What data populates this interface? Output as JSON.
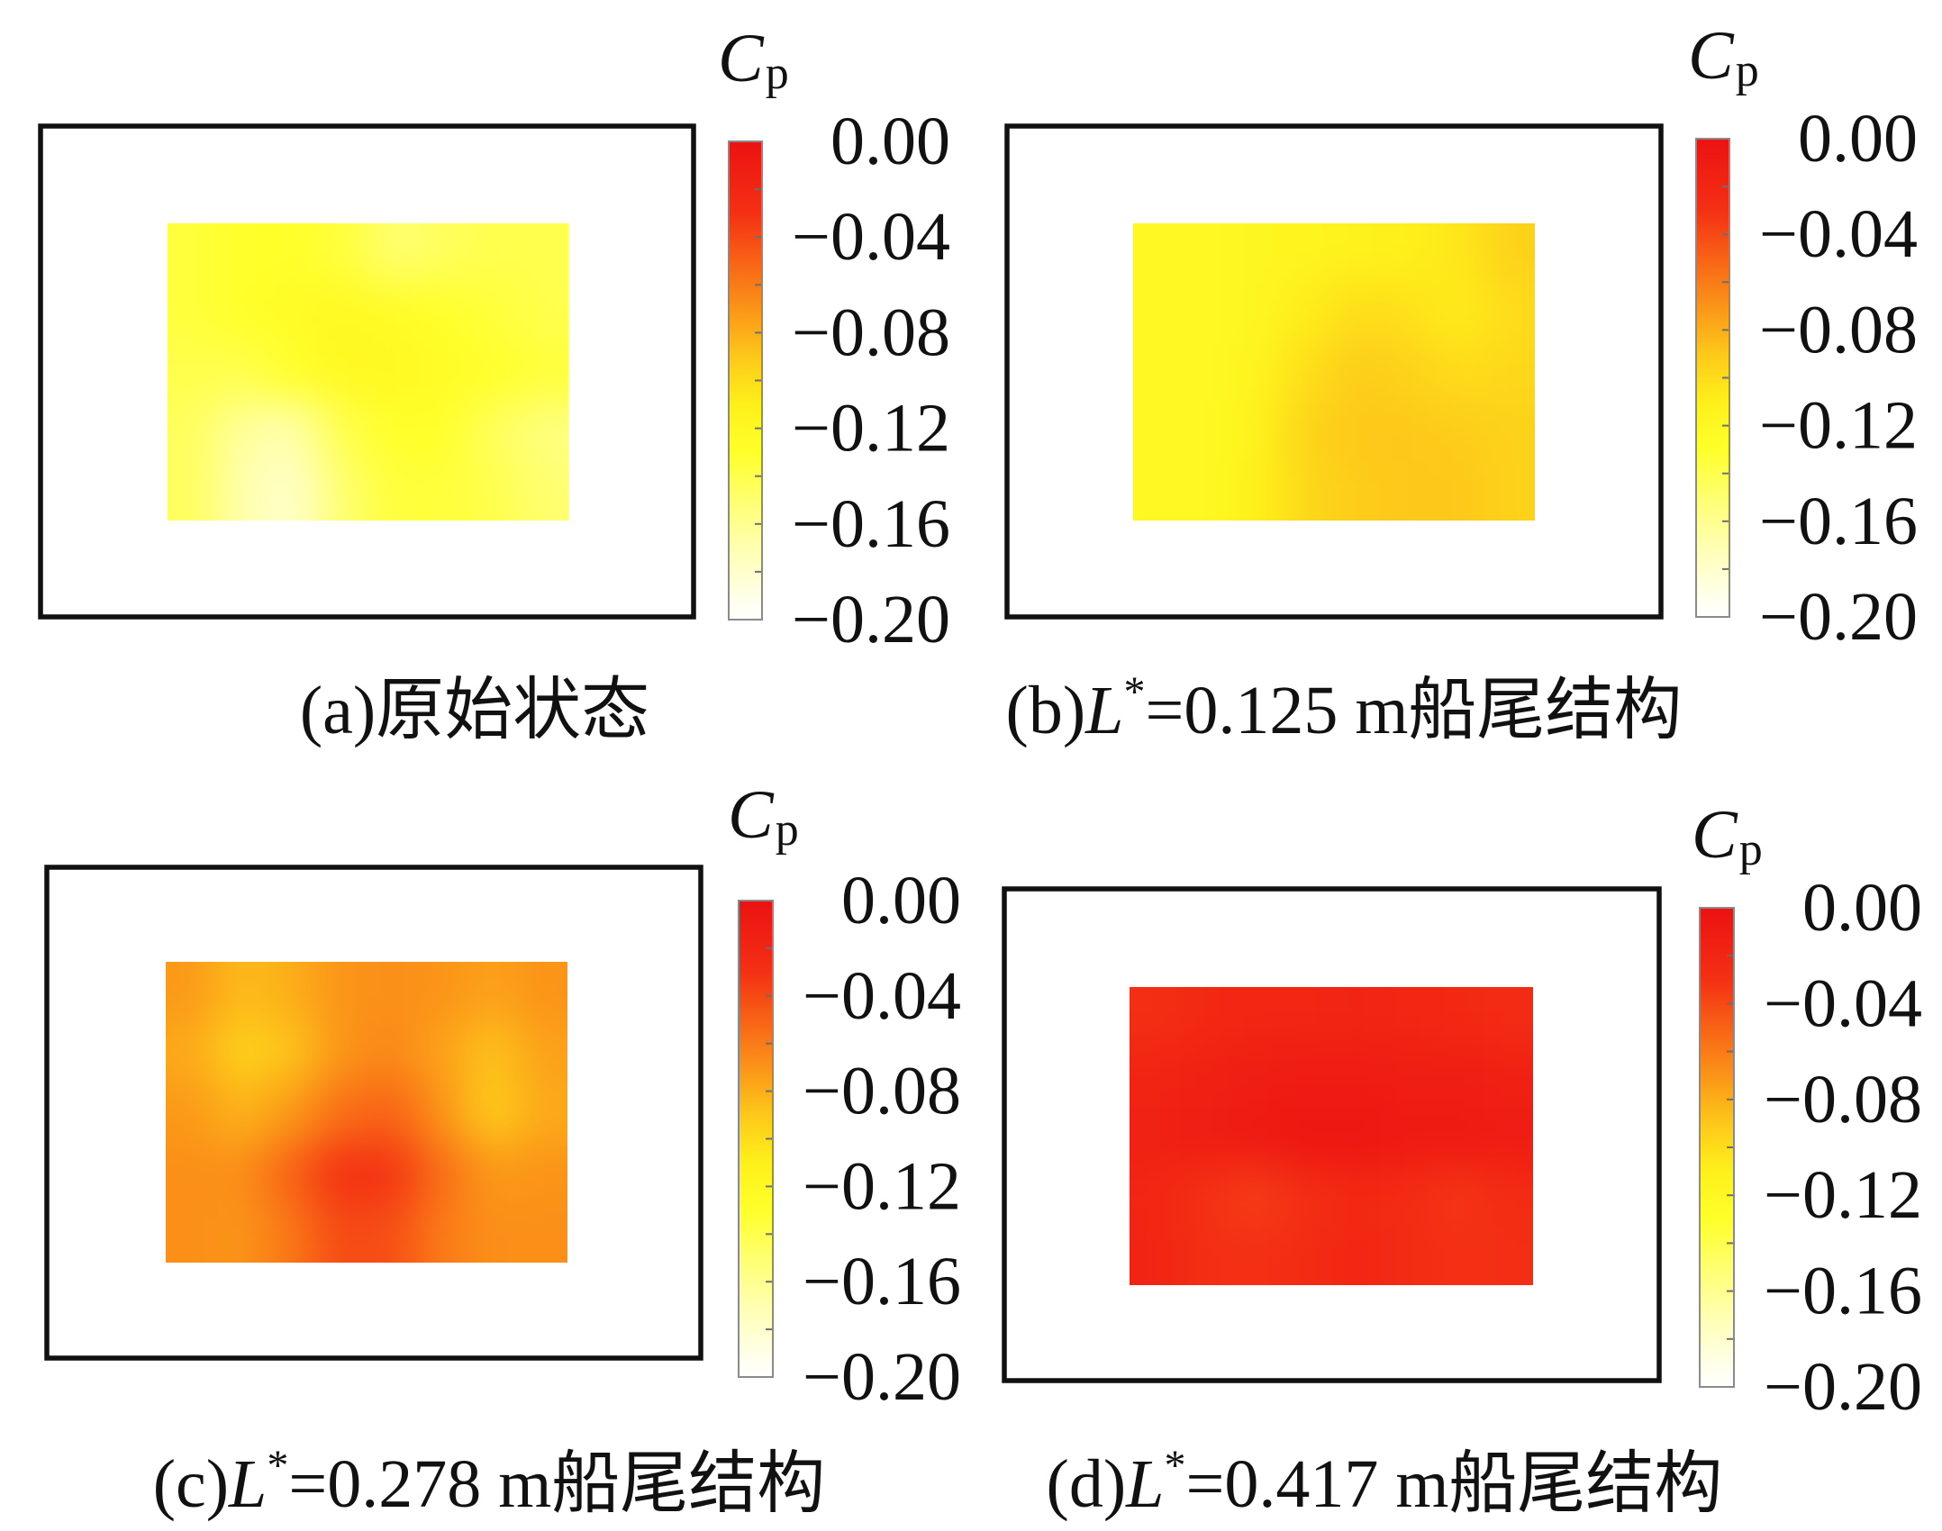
{
  "colormap": [
    {
      "value": 0.0,
      "color": "#ec1212"
    },
    {
      "value": -0.03,
      "color": "#f43014"
    },
    {
      "value": -0.05,
      "color": "#f86216"
    },
    {
      "value": -0.07,
      "color": "#fb9418"
    },
    {
      "value": -0.09,
      "color": "#fdc81a"
    },
    {
      "value": -0.11,
      "color": "#fef01a"
    },
    {
      "value": -0.13,
      "color": "#ffff2a"
    },
    {
      "value": -0.15,
      "color": "#ffff70"
    },
    {
      "value": -0.17,
      "color": "#ffffb0"
    },
    {
      "value": -0.19,
      "color": "#ffffe8"
    },
    {
      "value": -0.2,
      "color": "#ffffff"
    }
  ],
  "chart_data": [
    {
      "type": "heatmap",
      "caption": {
        "text": "(a)原始状态"
      },
      "colorbar": {
        "label": "C",
        "label_sub": "p",
        "range": [
          -0.2,
          0.0
        ],
        "tick_values": [
          0.0,
          -0.04,
          -0.08,
          -0.12,
          -0.16,
          -0.2
        ],
        "tick_labels": [
          "0.00",
          "−0.04",
          "−0.08",
          "−0.12",
          "−0.16",
          "−0.20"
        ],
        "minor_tick_interval": 0.02
      },
      "z": [
        [
          -0.135,
          -0.13,
          -0.13,
          -0.135,
          -0.15,
          -0.145,
          -0.14,
          -0.14
        ],
        [
          -0.135,
          -0.13,
          -0.125,
          -0.12,
          -0.125,
          -0.13,
          -0.135,
          -0.14
        ],
        [
          -0.14,
          -0.14,
          -0.13,
          -0.12,
          -0.12,
          -0.125,
          -0.13,
          -0.135
        ],
        [
          -0.145,
          -0.165,
          -0.17,
          -0.14,
          -0.13,
          -0.13,
          -0.145,
          -0.155
        ],
        [
          -0.145,
          -0.17,
          -0.18,
          -0.15,
          -0.135,
          -0.135,
          -0.14,
          -0.15
        ]
      ]
    },
    {
      "type": "heatmap",
      "caption": {
        "prefix": "(b)",
        "var": "L",
        "sup": "*",
        "rest": "=0.125 m船尾结构"
      },
      "colorbar": {
        "label": "C",
        "label_sub": "p",
        "range": [
          -0.2,
          0.0
        ],
        "tick_values": [
          0.0,
          -0.04,
          -0.08,
          -0.12,
          -0.16,
          -0.2
        ],
        "tick_labels": [
          "0.00",
          "−0.04",
          "−0.08",
          "−0.12",
          "−0.16",
          "−0.20"
        ],
        "minor_tick_interval": 0.02
      },
      "z": [
        [
          -0.12,
          -0.12,
          -0.118,
          -0.115,
          -0.112,
          -0.11,
          -0.105,
          -0.095
        ],
        [
          -0.12,
          -0.12,
          -0.118,
          -0.108,
          -0.1,
          -0.102,
          -0.108,
          -0.1
        ],
        [
          -0.12,
          -0.12,
          -0.115,
          -0.1,
          -0.092,
          -0.095,
          -0.1,
          -0.098
        ],
        [
          -0.12,
          -0.12,
          -0.112,
          -0.095,
          -0.09,
          -0.09,
          -0.092,
          -0.095
        ],
        [
          -0.12,
          -0.12,
          -0.11,
          -0.097,
          -0.092,
          -0.09,
          -0.09,
          -0.095
        ]
      ]
    },
    {
      "type": "heatmap",
      "caption": {
        "prefix": "(c)",
        "var": "L",
        "sup": "*",
        "rest": "=0.278 m船尾结构"
      },
      "colorbar": {
        "label": "C",
        "label_sub": "p",
        "range": [
          -0.2,
          0.0
        ],
        "tick_values": [
          0.0,
          -0.04,
          -0.08,
          -0.12,
          -0.16,
          -0.2
        ],
        "tick_labels": [
          "0.00",
          "−0.04",
          "−0.08",
          "−0.12",
          "−0.16",
          "−0.20"
        ],
        "minor_tick_interval": 0.02
      },
      "z": [
        [
          -0.072,
          -0.085,
          -0.08,
          -0.07,
          -0.068,
          -0.07,
          -0.075,
          -0.07
        ],
        [
          -0.078,
          -0.095,
          -0.088,
          -0.07,
          -0.065,
          -0.075,
          -0.088,
          -0.075
        ],
        [
          -0.072,
          -0.082,
          -0.072,
          -0.055,
          -0.05,
          -0.07,
          -0.092,
          -0.078
        ],
        [
          -0.068,
          -0.068,
          -0.05,
          -0.03,
          -0.032,
          -0.055,
          -0.072,
          -0.07
        ],
        [
          -0.068,
          -0.07,
          -0.058,
          -0.04,
          -0.042,
          -0.06,
          -0.068,
          -0.068
        ]
      ]
    },
    {
      "type": "heatmap",
      "caption": {
        "prefix": "(d)",
        "var": "L",
        "sup": "*",
        "rest": "=0.417 m船尾结构"
      },
      "colorbar": {
        "label": "C",
        "label_sub": "p",
        "range": [
          -0.2,
          0.0
        ],
        "tick_values": [
          0.0,
          -0.04,
          -0.08,
          -0.12,
          -0.16,
          -0.2
        ],
        "tick_labels": [
          "0.00",
          "−0.04",
          "−0.08",
          "−0.12",
          "−0.16",
          "−0.20"
        ],
        "minor_tick_interval": 0.02
      },
      "z": [
        [
          -0.028,
          -0.022,
          -0.02,
          -0.02,
          -0.018,
          -0.02,
          -0.022,
          -0.025
        ],
        [
          -0.018,
          -0.015,
          -0.012,
          -0.01,
          -0.01,
          -0.012,
          -0.012,
          -0.015
        ],
        [
          -0.015,
          -0.012,
          -0.008,
          -0.005,
          -0.005,
          -0.008,
          -0.008,
          -0.01
        ],
        [
          -0.02,
          -0.03,
          -0.035,
          -0.028,
          -0.022,
          -0.025,
          -0.032,
          -0.025
        ],
        [
          -0.018,
          -0.028,
          -0.03,
          -0.025,
          -0.02,
          -0.025,
          -0.03,
          -0.028
        ]
      ]
    }
  ]
}
